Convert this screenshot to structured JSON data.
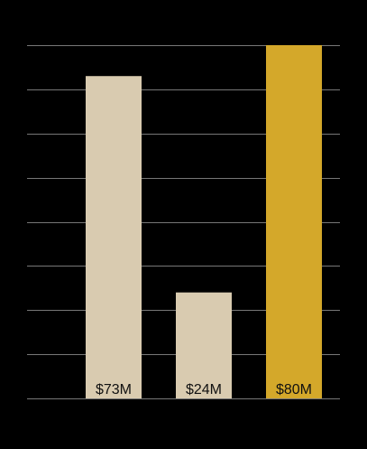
{
  "chart_data": {
    "type": "bar",
    "values": [
      73,
      24,
      80
    ],
    "value_labels": [
      "$73M",
      "$24M",
      "$80M"
    ],
    "colors": [
      "#d9cbb0",
      "#d9cbb0",
      "#d4a82a"
    ],
    "ylim": [
      0,
      80
    ],
    "yticks": [
      0,
      10,
      20,
      30,
      40,
      50,
      60,
      70,
      80
    ],
    "grid": true
  }
}
